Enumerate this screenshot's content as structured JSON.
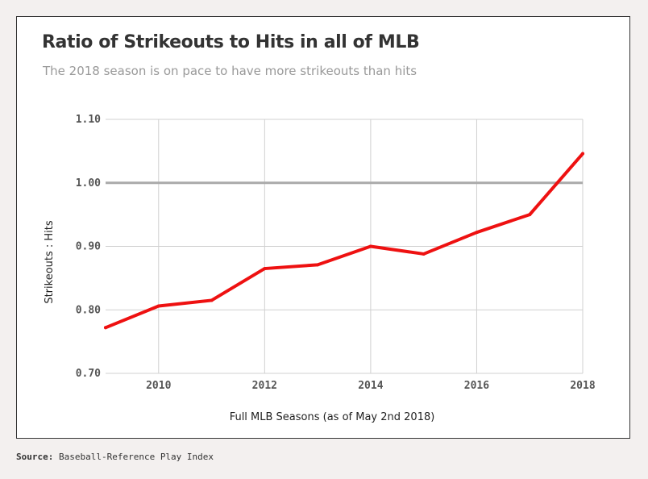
{
  "chart_data": {
    "type": "line",
    "title": "Ratio of Strikeouts to Hits in all of MLB",
    "subtitle": "The 2018 season is on pace to have more strikeouts than hits",
    "xlabel": "Full MLB Seasons (as of May 2nd 2018)",
    "ylabel": "Strikeouts : Hits",
    "x": [
      2009,
      2010,
      2011,
      2012,
      2013,
      2014,
      2015,
      2016,
      2017,
      2018
    ],
    "xlim": [
      2009,
      2018
    ],
    "xticks": [
      "2010",
      "2012",
      "2014",
      "2016",
      "2018"
    ],
    "ylim": [
      0.7,
      1.1
    ],
    "yticks": [
      "0.70",
      "0.80",
      "0.90",
      "1.00",
      "1.10"
    ],
    "grid": true,
    "reference_line": 1.0,
    "series": [
      {
        "color": "#ee1111",
        "values": [
          0.772,
          0.806,
          0.815,
          0.865,
          0.871,
          0.9,
          0.888,
          0.922,
          0.95,
          1.046
        ]
      }
    ]
  },
  "source": {
    "label": "Source:",
    "text": "Baseball-Reference Play Index"
  }
}
